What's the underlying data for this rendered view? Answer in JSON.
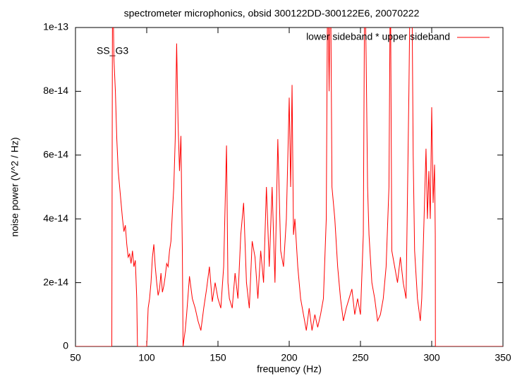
{
  "chart_data": {
    "type": "line",
    "title": "spectrometer microphonics, obsid 300122DD-300122E6, 20070222",
    "x_label": "frequency (Hz)",
    "y_label": "noise power (V^2 / Hz)",
    "annotation": "SS_G3",
    "xlim": [
      50,
      350
    ],
    "xticks": [
      50,
      100,
      150,
      200,
      250,
      300,
      350
    ],
    "ylim": [
      0,
      1e-13
    ],
    "yticks": [
      0,
      2e-14,
      4e-14,
      6e-14,
      8e-14,
      1e-13
    ],
    "legend": "top-right",
    "x": [
      50,
      75.5,
      76,
      77,
      78,
      79,
      80,
      81,
      82,
      83,
      84,
      85,
      86,
      87,
      88,
      89,
      90,
      91,
      92,
      93,
      93.5,
      100,
      101,
      102,
      103,
      104,
      105,
      106,
      107,
      108,
      109,
      110,
      111,
      112,
      113,
      114,
      115,
      116,
      117,
      118,
      119,
      120,
      121,
      122,
      123,
      124,
      125,
      125.5,
      127,
      128,
      130,
      132,
      134,
      136,
      138,
      140,
      142,
      144,
      146,
      148,
      150,
      152,
      154,
      156,
      157,
      158,
      160,
      162,
      164,
      166,
      168,
      170,
      172,
      174,
      176,
      178,
      180,
      182,
      184,
      186,
      188,
      190,
      192,
      194,
      196,
      198,
      200,
      201,
      202,
      203,
      204,
      206,
      208,
      210,
      212,
      214,
      216,
      218,
      220,
      222,
      224,
      226,
      227,
      228,
      229,
      230,
      232,
      234,
      236,
      238,
      240,
      242,
      244,
      246,
      248,
      250,
      252,
      253,
      254,
      255,
      256,
      258,
      260,
      262,
      264,
      266,
      268,
      270,
      271,
      272,
      274,
      276,
      278,
      280,
      282,
      284,
      285,
      286,
      287,
      288,
      290,
      292,
      293,
      294,
      296,
      297,
      298,
      299,
      300,
      301,
      302,
      302.5,
      302.6,
      350
    ],
    "series": [
      {
        "name": "lower sideband * upper sideband",
        "color": "#ff0000",
        "values": [
          0,
          0,
          1.2e-13,
          9e-14,
          8e-14,
          6.5e-14,
          5.5e-14,
          5e-14,
          4.5e-14,
          4e-14,
          3.6e-14,
          3.8e-14,
          3.2e-14,
          2.8e-14,
          2.9e-14,
          2.6e-14,
          3e-14,
          2.5e-14,
          2.7e-14,
          1.5e-14,
          0,
          0,
          1.2e-14,
          1.5e-14,
          2e-14,
          2.8e-14,
          3.2e-14,
          2.5e-14,
          2e-14,
          1.6e-14,
          1.8e-14,
          2.3e-14,
          1.7e-14,
          1.9e-14,
          2.2e-14,
          2.6e-14,
          2.5e-14,
          3e-14,
          3.3e-14,
          4.2e-14,
          5e-14,
          6.5e-14,
          9.5e-14,
          7e-14,
          5.5e-14,
          6.6e-14,
          3e-14,
          0,
          5e-15,
          1e-14,
          2.2e-14,
          1.5e-14,
          1.2e-14,
          8e-15,
          5e-15,
          1.2e-14,
          1.8e-14,
          2.5e-14,
          1.4e-14,
          2e-14,
          1.5e-14,
          1.2e-14,
          2.5e-14,
          6.3e-14,
          2e-14,
          1.5e-14,
          1.2e-14,
          2.3e-14,
          1.5e-14,
          3.5e-14,
          4.5e-14,
          2e-14,
          1.2e-14,
          3.3e-14,
          2.8e-14,
          1.5e-14,
          3e-14,
          2e-14,
          5e-14,
          2.5e-14,
          5e-14,
          2e-14,
          6.5e-14,
          3e-14,
          2.5e-14,
          4e-14,
          7.8e-14,
          5e-14,
          8.2e-14,
          3.5e-14,
          4e-14,
          2.5e-14,
          1.5e-14,
          1e-14,
          5e-15,
          1.2e-14,
          5e-15,
          1e-14,
          6e-15,
          1e-14,
          1.5e-14,
          4e-14,
          1.2e-13,
          8e-14,
          1.2e-13,
          5e-14,
          4e-14,
          2.5e-14,
          1.5e-14,
          8e-15,
          1.2e-14,
          1.5e-14,
          1.8e-14,
          1e-14,
          1.5e-14,
          1e-14,
          3.5e-14,
          1.2e-13,
          9e-14,
          5e-14,
          3.5e-14,
          2e-14,
          1.5e-14,
          8e-15,
          1e-14,
          1.5e-14,
          2.5e-14,
          5e-14,
          1.2e-13,
          3e-14,
          2.5e-14,
          2e-14,
          2.8e-14,
          2e-14,
          1.5e-14,
          8e-14,
          1.2e-13,
          1.2e-13,
          6e-14,
          3e-14,
          1.5e-14,
          8e-15,
          1.5e-14,
          3e-14,
          6.2e-14,
          4e-14,
          5.5e-14,
          4e-14,
          7.5e-14,
          4.5e-14,
          5.7e-14,
          3.5e-14,
          0,
          0
        ]
      }
    ]
  }
}
